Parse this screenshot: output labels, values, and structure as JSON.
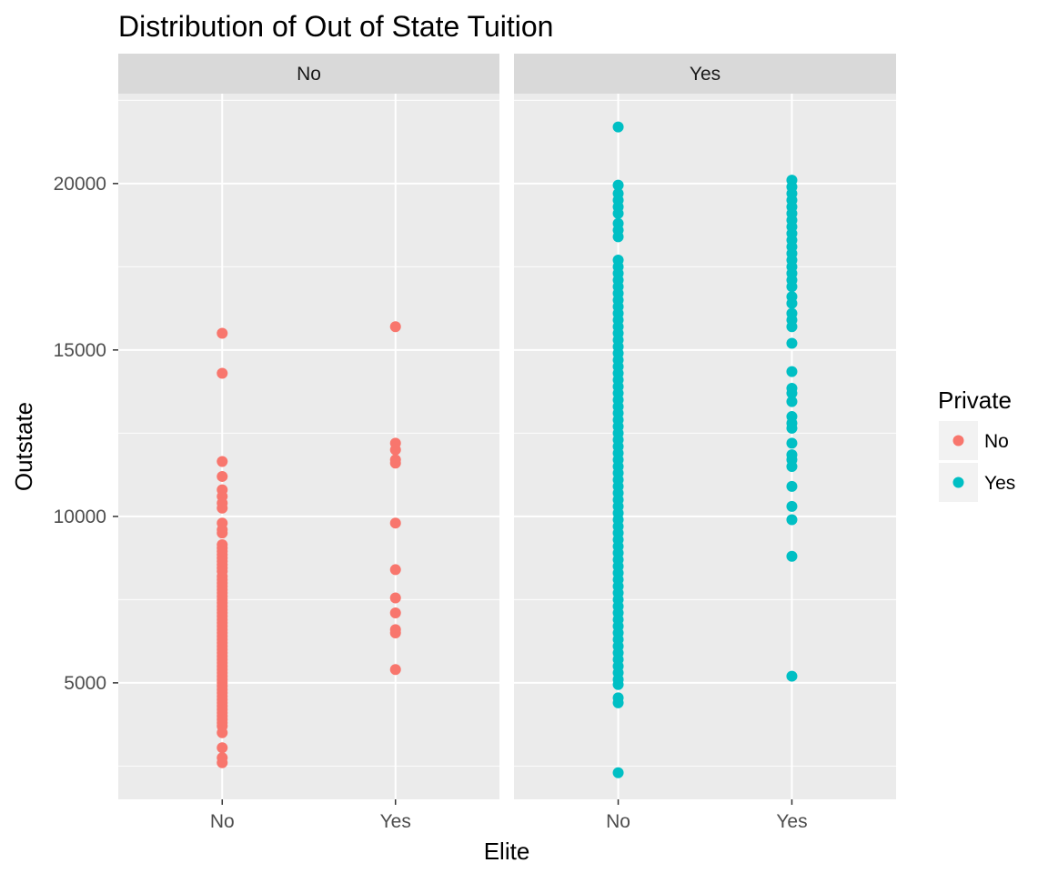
{
  "chart_data": {
    "type": "scatter",
    "title": "Distribution of Out of State Tuition",
    "xlabel": "Elite",
    "ylabel": "Outstate",
    "x_categories": [
      "No",
      "Yes"
    ],
    "y_ticks": [
      5000,
      10000,
      15000,
      20000
    ],
    "ylim": [
      1500,
      22700
    ],
    "grid": true,
    "facet_variable": "Private",
    "legend": {
      "title": "Private",
      "position": "right",
      "entries": [
        {
          "label": "No",
          "color": "#F8766D"
        },
        {
          "label": "Yes",
          "color": "#00BFC4"
        }
      ]
    },
    "panels": [
      {
        "label": "No",
        "color": "#F8766D",
        "points": {
          "No": [
            15500,
            14300,
            11650,
            11200,
            10800,
            10600,
            10400,
            10250,
            9800,
            9600,
            9500,
            9150,
            9050,
            8950,
            8850,
            8750,
            8650,
            8550,
            8450,
            8350,
            8200,
            8100,
            8000,
            7900,
            7800,
            7700,
            7600,
            7500,
            7400,
            7300,
            7200,
            7100,
            7000,
            6900,
            6800,
            6700,
            6600,
            6500,
            6400,
            6300,
            6200,
            6100,
            6000,
            5900,
            5800,
            5700,
            5600,
            5500,
            5400,
            5300,
            5200,
            5100,
            5000,
            4900,
            4800,
            4700,
            4600,
            4500,
            4400,
            4300,
            4200,
            4100,
            4000,
            3900,
            3800,
            3700,
            3500,
            3050,
            2750,
            2600
          ],
          "Yes": [
            15700,
            12200,
            12000,
            11700,
            11600,
            9800,
            8400,
            7550,
            7100,
            6600,
            6500,
            5400
          ]
        }
      },
      {
        "label": "Yes",
        "color": "#00BFC4",
        "points": {
          "No": [
            21700,
            19950,
            19700,
            19500,
            19300,
            19100,
            18800,
            18600,
            18400,
            17700,
            17500,
            17300,
            17100,
            16900,
            16700,
            16500,
            16300,
            16100,
            15900,
            15700,
            15500,
            15300,
            15100,
            14900,
            14700,
            14500,
            14300,
            14100,
            13900,
            13700,
            13500,
            13300,
            13100,
            12900,
            12700,
            12500,
            12300,
            12100,
            11900,
            11700,
            11500,
            11300,
            11100,
            10900,
            10700,
            10500,
            10300,
            10100,
            9900,
            9700,
            9500,
            9300,
            9100,
            8900,
            8700,
            8500,
            8300,
            8100,
            7900,
            7700,
            7500,
            7300,
            7100,
            6900,
            6700,
            6500,
            6300,
            6100,
            5900,
            5700,
            5500,
            5300,
            5100,
            4950,
            4550,
            4400,
            2300
          ],
          "Yes": [
            20100,
            19900,
            19700,
            19500,
            19300,
            19100,
            18900,
            18700,
            18500,
            18300,
            18100,
            17900,
            17700,
            17500,
            17300,
            17100,
            16900,
            16600,
            16400,
            16100,
            15900,
            15700,
            15200,
            14350,
            13850,
            13700,
            13450,
            13000,
            12800,
            12650,
            12200,
            11850,
            11700,
            11500,
            10900,
            10300,
            9900,
            8800,
            5200
          ]
        }
      }
    ]
  }
}
